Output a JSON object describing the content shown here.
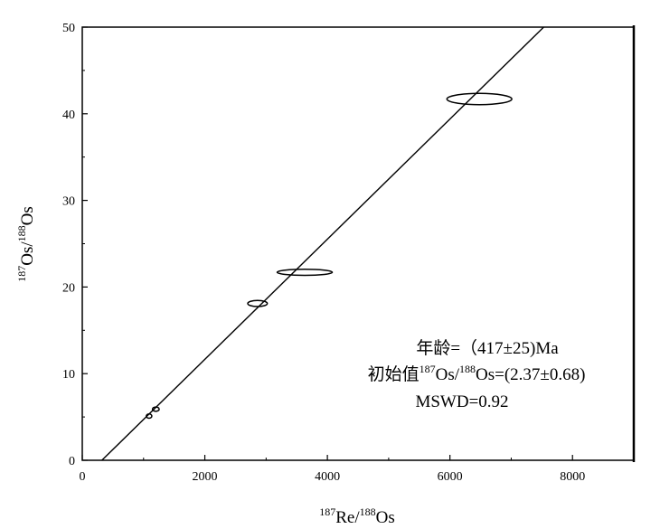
{
  "chart_data": {
    "type": "scatter",
    "title": "",
    "xlabel": {
      "sup1": "187",
      "base1": "Re/",
      "sup2": "188",
      "base2": "Os"
    },
    "ylabel": {
      "sup1": "187",
      "base1": "Os/",
      "sup2": "188",
      "base2": "Os"
    },
    "xlim": [
      0,
      9000
    ],
    "ylim": [
      0,
      50
    ],
    "xticks": [
      0,
      2000,
      4000,
      6000,
      8000
    ],
    "yticks": [
      0,
      10,
      20,
      30,
      40,
      50
    ],
    "grid": false,
    "points": [
      {
        "x": 1090,
        "y": 5.1,
        "x_err": 45,
        "y_err": 0.25
      },
      {
        "x": 1200,
        "y": 5.9,
        "x_err": 55,
        "y_err": 0.25
      },
      {
        "x": 2860,
        "y": 18.1,
        "x_err": 160,
        "y_err": 0.35
      },
      {
        "x": 3630,
        "y": 21.7,
        "x_err": 450,
        "y_err": 0.35
      },
      {
        "x": 6480,
        "y": 41.7,
        "x_err": 530,
        "y_err": 0.65
      }
    ],
    "fit_line": {
      "x1": 320,
      "y1": 0,
      "x2": 7530,
      "y2": 50
    },
    "annotations": {
      "age": "年龄=（417±25)Ma",
      "initial_prefix": "初始值",
      "initial_sup1": "187",
      "initial_mid": "Os/",
      "initial_sup2": "188",
      "initial_suffix": "Os=(2.37±0.68)",
      "mswd": "MSWD=0.92"
    }
  }
}
